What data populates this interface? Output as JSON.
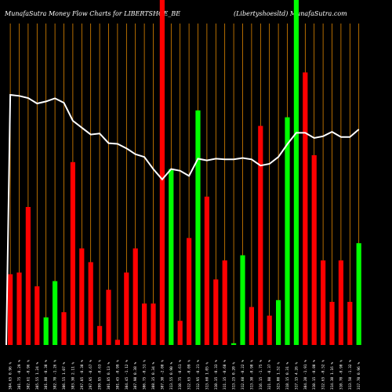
{
  "chart_data": {
    "type": "bar",
    "title": "MunafaSutra  Money Flow  Charts for LIBERTSHOE_BE",
    "subtitle": "(Libertyshoesltd) MunafaSutra.com",
    "ylim": [
      0,
      100
    ],
    "line_range": [
      0,
      100
    ],
    "colors": {
      "up": "#00ff00",
      "down": "#ff0000",
      "line": "#ffffff",
      "grid": "#ff9900",
      "background": "#000000"
    },
    "bars": [
      {
        "label": "304.65 0.96 %",
        "value": 20.5,
        "direction": "down"
      },
      {
        "label": "301.75 -0.29 %",
        "value": 21,
        "direction": "down"
      },
      {
        "label": "302.61 -0.96 %",
        "value": 40,
        "direction": "down"
      },
      {
        "label": "305.55 1.24 %",
        "value": 17,
        "direction": "down"
      },
      {
        "label": "301.80 -0.30 %",
        "value": 8,
        "direction": "up"
      },
      {
        "label": "302.70 -1.26 %",
        "value": 18.5,
        "direction": "up"
      },
      {
        "label": "306.55 1.07 %",
        "value": 9.5,
        "direction": "down"
      },
      {
        "label": "303.30 2.11 %",
        "value": 53,
        "direction": "down"
      },
      {
        "label": "297.05 -0.30 %",
        "value": 28,
        "direction": "down"
      },
      {
        "label": "297.95 -0.67 %",
        "value": 24,
        "direction": "down"
      },
      {
        "label": "299.95 -0.63 %",
        "value": 5.5,
        "direction": "down"
      },
      {
        "label": "301.85 0.13 %",
        "value": 16,
        "direction": "down"
      },
      {
        "label": "301.45 -0.99 %",
        "value": 1.5,
        "direction": "down"
      },
      {
        "label": "304.45 -1.12 %",
        "value": 21,
        "direction": "down"
      },
      {
        "label": "307.90 0.38 %",
        "value": 28,
        "direction": "down"
      },
      {
        "label": "306.75 -0.51 %",
        "value": 12,
        "direction": "down"
      },
      {
        "label": "308.35 0.34 %",
        "value": 12,
        "direction": "down"
      },
      {
        "label": "307.30 -2.00 %",
        "value": 100,
        "direction": "down"
      },
      {
        "label": "313.55 0.90 %",
        "value": 51,
        "direction": "up"
      },
      {
        "label": "310.75 -0.61 %",
        "value": 7,
        "direction": "down"
      },
      {
        "label": "312.65 -0.09 %",
        "value": 31,
        "direction": "down"
      },
      {
        "label": "312.95 -0.21 %",
        "value": 68,
        "direction": "up"
      },
      {
        "label": "313.60 1.05 %",
        "value": 43,
        "direction": "down"
      },
      {
        "label": "310.35 -0.33 %",
        "value": 19,
        "direction": "down"
      },
      {
        "label": "311.35 -0.60 %",
        "value": 24.5,
        "direction": "down"
      },
      {
        "label": "313.25 0.20 %",
        "value": 0.5,
        "direction": "up"
      },
      {
        "label": "312.60 -0.22 %",
        "value": 26,
        "direction": "up"
      },
      {
        "label": "313.30 -0.90 %",
        "value": 11,
        "direction": "down"
      },
      {
        "label": "316.15 -1.75 %",
        "value": 63.5,
        "direction": "down"
      },
      {
        "label": "321.80 -0.37 %",
        "value": 8.5,
        "direction": "down"
      },
      {
        "label": "323.00 1.52 %",
        "value": 13,
        "direction": "up"
      },
      {
        "label": "318.15 0.31 %",
        "value": 66,
        "direction": "up"
      },
      {
        "label": "317.15 4.26 %",
        "value": 100,
        "direction": "up"
      },
      {
        "label": "304.20 -1.91 %",
        "value": 79,
        "direction": "down"
      },
      {
        "label": "310.15 -0.80 %",
        "value": 55,
        "direction": "down"
      },
      {
        "label": "312.65 -0.52 %",
        "value": 24.5,
        "direction": "down"
      },
      {
        "label": "314.30 1.16 %",
        "value": 12.5,
        "direction": "down"
      },
      {
        "label": "310.70 -0.90 %",
        "value": 24.5,
        "direction": "down"
      },
      {
        "label": "313.50 -1.32 %",
        "value": 12.5,
        "direction": "down"
      },
      {
        "label": "317.70 0.96 %",
        "value": 29.5,
        "direction": "up"
      }
    ],
    "line": [
      72.5,
      72.2,
      71.6,
      70,
      70.6,
      71.5,
      70.2,
      65,
      63,
      61,
      61.3,
      58.5,
      58.3,
      57,
      55.3,
      54.5,
      51,
      48,
      51,
      50.5,
      49,
      54,
      53.5,
      54,
      53.8,
      53.8,
      54.2,
      53.8,
      52,
      52.5,
      54.5,
      58.2,
      61.5,
      61.5,
      60,
      60.5,
      61.8,
      60.3,
      60.3,
      62.5
    ]
  }
}
